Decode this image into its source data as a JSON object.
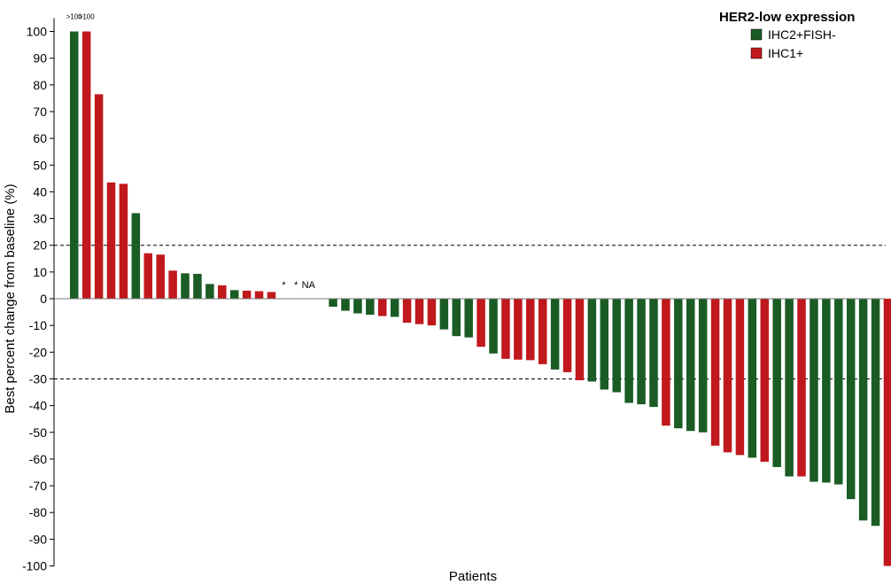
{
  "chart_data": {
    "type": "bar",
    "title": "",
    "xlabel": "Patients",
    "ylabel": "Best percent change from baseline (%)",
    "ylim": [
      -100,
      105
    ],
    "yticks": [
      100,
      90,
      80,
      70,
      60,
      50,
      40,
      30,
      20,
      10,
      0,
      -10,
      -20,
      -30,
      -40,
      -50,
      -60,
      -70,
      -80,
      -90,
      -100
    ],
    "reference_lines": [
      20,
      -30
    ],
    "grid": false,
    "legend": {
      "title": "HER2-low expression",
      "position": "top-right",
      "entries": [
        {
          "label": "IHC2+FISH-",
          "color": "#1a5c24"
        },
        {
          "label": "IHC1+",
          "color": "#c0181c"
        }
      ]
    },
    "series_colors": {
      "IHC2+FISH-": "#1a5c24",
      "IHC1+": "#c0181c"
    },
    "patients": [
      {
        "value": 100,
        "group": "IHC2+FISH-",
        "label": ">100"
      },
      {
        "value": 100,
        "group": "IHC1+",
        "label": ">100"
      },
      {
        "value": 76.5,
        "group": "IHC1+"
      },
      {
        "value": 43.5,
        "group": "IHC1+"
      },
      {
        "value": 43,
        "group": "IHC1+"
      },
      {
        "value": 32,
        "group": "IHC2+FISH-"
      },
      {
        "value": 17,
        "group": "IHC1+"
      },
      {
        "value": 16.5,
        "group": "IHC1+"
      },
      {
        "value": 10.5,
        "group": "IHC1+"
      },
      {
        "value": 9.5,
        "group": "IHC2+FISH-"
      },
      {
        "value": 9.3,
        "group": "IHC2+FISH-"
      },
      {
        "value": 5.5,
        "group": "IHC2+FISH-"
      },
      {
        "value": 5,
        "group": "IHC1+"
      },
      {
        "value": 3.2,
        "group": "IHC2+FISH-"
      },
      {
        "value": 3,
        "group": "IHC1+"
      },
      {
        "value": 2.8,
        "group": "IHC1+"
      },
      {
        "value": 2.5,
        "group": "IHC1+"
      },
      {
        "value": null,
        "group": null,
        "label": "*"
      },
      {
        "value": null,
        "group": null,
        "label": "*"
      },
      {
        "value": null,
        "group": null,
        "label": "NA"
      },
      {
        "value": null,
        "group": null
      },
      {
        "value": -3,
        "group": "IHC2+FISH-"
      },
      {
        "value": -4.5,
        "group": "IHC2+FISH-"
      },
      {
        "value": -5.5,
        "group": "IHC2+FISH-"
      },
      {
        "value": -6,
        "group": "IHC2+FISH-"
      },
      {
        "value": -6.5,
        "group": "IHC1+"
      },
      {
        "value": -6.8,
        "group": "IHC2+FISH-"
      },
      {
        "value": -9,
        "group": "IHC1+"
      },
      {
        "value": -9.5,
        "group": "IHC1+"
      },
      {
        "value": -10,
        "group": "IHC1+"
      },
      {
        "value": -11.5,
        "group": "IHC2+FISH-"
      },
      {
        "value": -14,
        "group": "IHC2+FISH-"
      },
      {
        "value": -14.5,
        "group": "IHC2+FISH-"
      },
      {
        "value": -18,
        "group": "IHC1+"
      },
      {
        "value": -20.5,
        "group": "IHC2+FISH-"
      },
      {
        "value": -22.5,
        "group": "IHC1+"
      },
      {
        "value": -22.8,
        "group": "IHC1+"
      },
      {
        "value": -23,
        "group": "IHC1+"
      },
      {
        "value": -24.5,
        "group": "IHC1+"
      },
      {
        "value": -26.5,
        "group": "IHC2+FISH-"
      },
      {
        "value": -27.5,
        "group": "IHC1+"
      },
      {
        "value": -30.5,
        "group": "IHC1+"
      },
      {
        "value": -31,
        "group": "IHC2+FISH-"
      },
      {
        "value": -34,
        "group": "IHC2+FISH-"
      },
      {
        "value": -35,
        "group": "IHC2+FISH-"
      },
      {
        "value": -39,
        "group": "IHC2+FISH-"
      },
      {
        "value": -39.5,
        "group": "IHC2+FISH-"
      },
      {
        "value": -40.5,
        "group": "IHC2+FISH-"
      },
      {
        "value": -47.5,
        "group": "IHC1+"
      },
      {
        "value": -48.5,
        "group": "IHC2+FISH-"
      },
      {
        "value": -49.5,
        "group": "IHC2+FISH-"
      },
      {
        "value": -50,
        "group": "IHC2+FISH-"
      },
      {
        "value": -55,
        "group": "IHC1+"
      },
      {
        "value": -57.5,
        "group": "IHC1+"
      },
      {
        "value": -58.5,
        "group": "IHC1+"
      },
      {
        "value": -59.5,
        "group": "IHC2+FISH-"
      },
      {
        "value": -61,
        "group": "IHC1+"
      },
      {
        "value": -63,
        "group": "IHC2+FISH-"
      },
      {
        "value": -66.5,
        "group": "IHC2+FISH-"
      },
      {
        "value": -66.5,
        "group": "IHC1+"
      },
      {
        "value": -68.5,
        "group": "IHC2+FISH-"
      },
      {
        "value": -68.8,
        "group": "IHC2+FISH-"
      },
      {
        "value": -69.5,
        "group": "IHC2+FISH-"
      },
      {
        "value": -75,
        "group": "IHC2+FISH-"
      },
      {
        "value": -83,
        "group": "IHC2+FISH-"
      },
      {
        "value": -85,
        "group": "IHC2+FISH-"
      },
      {
        "value": -100,
        "group": "IHC1+"
      }
    ]
  }
}
